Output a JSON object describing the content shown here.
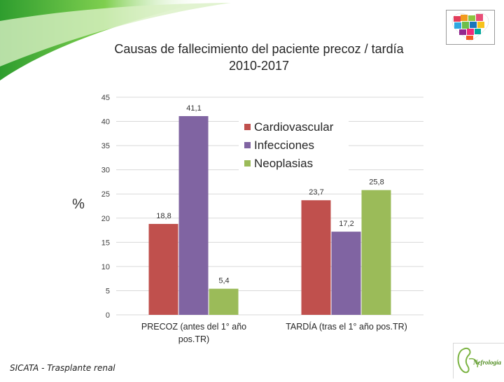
{
  "slide": {
    "title_line1": "Causas de fallecimiento del paciente precoz / tardía",
    "title_line2": "2010-2017",
    "footer": "SICATA - Trasplante renal"
  },
  "logos": {
    "heart_logo": "heart-logo",
    "nefrologia_text": "Nefrología"
  },
  "chart_data": {
    "type": "bar",
    "title": "",
    "ylabel": "%",
    "xlabel": "",
    "ylim": [
      0,
      45
    ],
    "yticks": [
      0,
      5,
      10,
      15,
      20,
      25,
      30,
      35,
      40,
      45
    ],
    "grid": true,
    "legend_position": "top-right",
    "categories": [
      "PRECOZ (antes del 1° año pos.TR)",
      "TARDÍA (tras el 1° año pos.TR)"
    ],
    "category_lines": [
      [
        "PRECOZ (antes del 1° año",
        "pos.TR)"
      ],
      [
        "TARDÍA (tras el 1° año pos.TR)"
      ]
    ],
    "series": [
      {
        "name": "Cardiovascular",
        "values": [
          18.8,
          23.7
        ],
        "labels": [
          "18,8",
          "23,7"
        ],
        "color": "#c0504d"
      },
      {
        "name": "Infecciones",
        "values": [
          41.1,
          17.2
        ],
        "labels": [
          "41,1",
          "17,2"
        ],
        "color": "#8064a2"
      },
      {
        "name": "Neoplasias",
        "values": [
          5.4,
          25.8
        ],
        "labels": [
          "5,4",
          "25,8"
        ],
        "color": "#9bbb59"
      }
    ]
  }
}
